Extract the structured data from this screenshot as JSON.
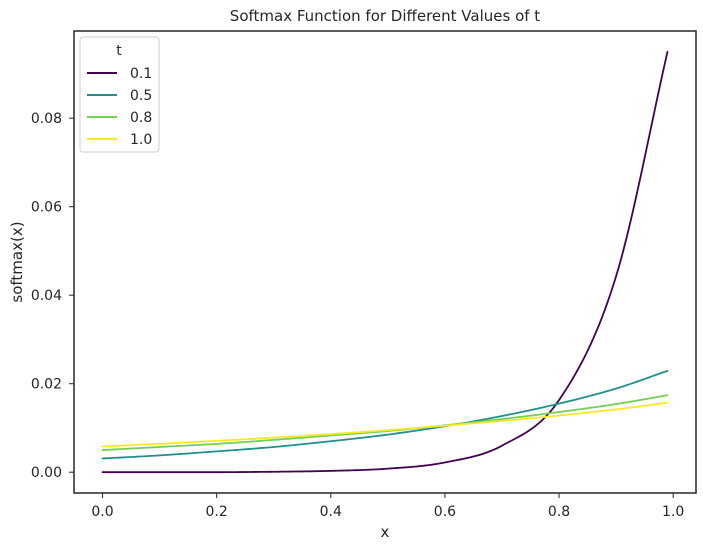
{
  "chart_data": {
    "type": "line",
    "title": "Softmax Function for Different Values of t",
    "xlabel": "x",
    "ylabel": "softmax(x)",
    "xlim": [
      -0.05,
      1.04
    ],
    "ylim": [
      -0.0047,
      0.0997
    ],
    "xticks": [
      0.0,
      0.2,
      0.4,
      0.6,
      0.8,
      1.0
    ],
    "xtick_labels": [
      "0.0",
      "0.2",
      "0.4",
      "0.6",
      "0.8",
      "1.0"
    ],
    "yticks": [
      0.0,
      0.02,
      0.04,
      0.06,
      0.08
    ],
    "ytick_labels": [
      "0.00",
      "0.02",
      "0.04",
      "0.06",
      "0.08"
    ],
    "grid": false,
    "legend": {
      "title": "t",
      "position": "top-left"
    },
    "series": [
      {
        "name": "0.1",
        "color": "#440154",
        "x": [
          0.0,
          0.1,
          0.2,
          0.3,
          0.4,
          0.5,
          0.6,
          0.7,
          0.8,
          0.9,
          0.99
        ],
        "values": [
          0.0,
          0.0,
          0.0,
          0.0001,
          0.0003,
          0.0008,
          0.0022,
          0.006,
          0.0163,
          0.0443,
          0.095
        ]
      },
      {
        "name": "0.5",
        "color": "#21908C",
        "x": [
          0.0,
          0.1,
          0.2,
          0.3,
          0.4,
          0.5,
          0.6,
          0.7,
          0.8,
          0.9,
          0.99
        ],
        "values": [
          0.0031,
          0.0038,
          0.0047,
          0.0057,
          0.007,
          0.0085,
          0.0104,
          0.0127,
          0.0155,
          0.0189,
          0.0229
        ]
      },
      {
        "name": "0.8",
        "color": "#73D055",
        "x": [
          0.0,
          0.1,
          0.2,
          0.3,
          0.4,
          0.5,
          0.6,
          0.7,
          0.8,
          0.9,
          0.99
        ],
        "values": [
          0.005,
          0.0057,
          0.0064,
          0.0073,
          0.0083,
          0.0093,
          0.0106,
          0.012,
          0.0136,
          0.0154,
          0.0174
        ]
      },
      {
        "name": "1.0",
        "color": "#FDE725",
        "x": [
          0.0,
          0.1,
          0.2,
          0.3,
          0.4,
          0.5,
          0.6,
          0.7,
          0.8,
          0.9,
          0.99
        ],
        "values": [
          0.0058,
          0.0064,
          0.0071,
          0.0078,
          0.0086,
          0.0095,
          0.0105,
          0.0116,
          0.0128,
          0.0142,
          0.0157
        ]
      }
    ]
  }
}
